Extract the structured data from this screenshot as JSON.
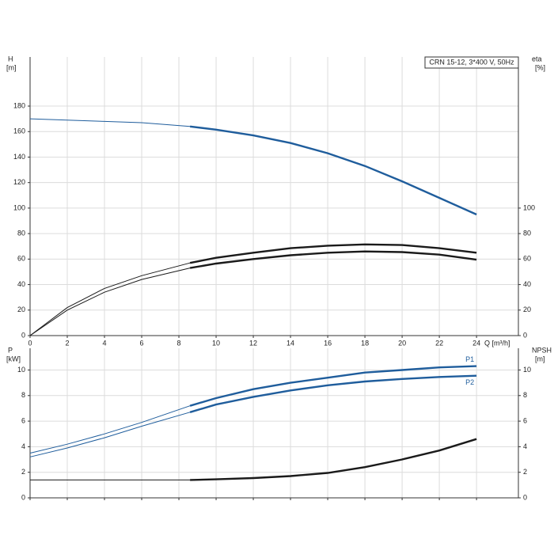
{
  "chart_data": [
    {
      "type": "line",
      "title": "CRN 15-12, 3*400 V, 50Hz",
      "y_label": "H",
      "y_unit": "[m]",
      "y2_label": "eta",
      "y2_unit": "[%]",
      "x_label": "Q [m³/h]",
      "x": [
        0,
        2,
        4,
        6,
        8.6,
        10,
        12,
        14,
        16,
        18,
        20,
        22,
        24
      ],
      "operating_range": [
        8.6,
        24
      ],
      "xlim": [
        0,
        26.25
      ],
      "xticks": [
        0,
        2,
        4,
        6,
        8,
        10,
        12,
        14,
        16,
        18,
        20,
        22,
        24
      ],
      "ylim": [
        0,
        218.5
      ],
      "yticks": [
        0,
        20,
        40,
        60,
        80,
        100,
        120,
        140,
        160,
        180
      ],
      "y2lim": [
        0,
        218.5
      ],
      "y2ticks": [
        0,
        20,
        40,
        60,
        80,
        100
      ],
      "grid": true,
      "series": [
        {
          "color": "#1f5d9c",
          "values": [
            170,
            169,
            168,
            167,
            164,
            161.5,
            157,
            151,
            143,
            133,
            121,
            108,
            95
          ]
        },
        {
          "color": "#1a1a1a",
          "axis": "y2",
          "values": [
            0,
            22,
            37,
            47,
            57,
            61,
            65,
            68.5,
            70.5,
            71.5,
            71,
            68.5,
            65
          ]
        },
        {
          "color": "#1a1a1a",
          "axis": "y2",
          "values": [
            0,
            20,
            34,
            44,
            53,
            56.5,
            60,
            63,
            65,
            66,
            65.5,
            63.5,
            59.5
          ]
        }
      ]
    },
    {
      "type": "line",
      "y_label": "P",
      "y_unit": "[kW]",
      "y2_label": "NPSH",
      "y2_unit": "[m]",
      "x": [
        0,
        2,
        4,
        6,
        8.6,
        10,
        12,
        14,
        16,
        18,
        20,
        22,
        24
      ],
      "operating_range": [
        8.6,
        24
      ],
      "xlim": [
        0,
        26.25
      ],
      "ylim": [
        0,
        11.7
      ],
      "yticks": [
        0,
        2,
        4,
        6,
        8,
        10
      ],
      "y2lim": [
        0,
        11.7
      ],
      "y2ticks": [
        0,
        2,
        4,
        6,
        8,
        10
      ],
      "grid": true,
      "series": [
        {
          "name": "P1",
          "color": "#1f5d9c",
          "values": [
            3.5,
            4.2,
            5.0,
            5.9,
            7.2,
            7.8,
            8.5,
            9.0,
            9.4,
            9.8,
            10.0,
            10.2,
            10.3
          ]
        },
        {
          "name": "P2",
          "color": "#1f5d9c",
          "values": [
            3.2,
            3.9,
            4.7,
            5.6,
            6.7,
            7.3,
            7.9,
            8.4,
            8.8,
            9.1,
            9.3,
            9.45,
            9.55
          ]
        },
        {
          "color": "#1a1a1a",
          "axis": "y2",
          "values": [
            1.4,
            1.4,
            1.4,
            1.4,
            1.4,
            1.45,
            1.55,
            1.7,
            1.95,
            2.4,
            3.0,
            3.7,
            4.6
          ]
        }
      ]
    }
  ]
}
